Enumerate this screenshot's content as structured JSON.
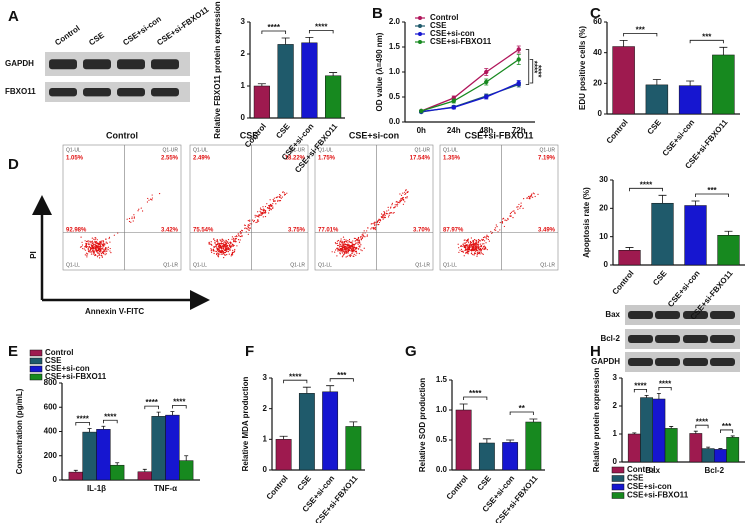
{
  "panel_labels": [
    "A",
    "B",
    "C",
    "D",
    "E",
    "F",
    "G",
    "H"
  ],
  "blot_A": {
    "lanes": [
      "Control",
      "CSE",
      "CSE+si-con",
      "CSE+si-FBXO11"
    ],
    "rows": [
      "GAPDH",
      "FBXO11"
    ]
  },
  "blot_H": {
    "rows": [
      "Bax",
      "Bcl-2",
      "GAPDH"
    ]
  },
  "flow": {
    "x_label": "Annexin V-FITC",
    "y_label": "PI",
    "quadrant_names": [
      "Q1-UL",
      "Q1-UR",
      "Q1-LL",
      "Q1-LR"
    ],
    "panels": [
      {
        "title": "Control",
        "UL": "1.05%",
        "UR": "2.55%",
        "LL": "92.98%",
        "LR": "3.42%"
      },
      {
        "title": "CSE",
        "UL": "2.49%",
        "UR": "18.22%",
        "LL": "75.54%",
        "LR": "3.75%"
      },
      {
        "title": "CSE+si-con",
        "UL": "1.75%",
        "UR": "17.54%",
        "LL": "77.01%",
        "LR": "3.70%"
      },
      {
        "title": "CSE+si-FBXO11",
        "UL": "1.35%",
        "UR": "7.19%",
        "LL": "87.97%",
        "LR": "3.49%"
      }
    ]
  },
  "chart_data": [
    {
      "type": "bar",
      "y_label": "Relative FBXO11 protein expression",
      "categories": [
        "Control",
        "CSE",
        "CSE+si-con",
        "CSE+si-FBXO11"
      ],
      "values": [
        1.0,
        2.3,
        2.35,
        1.32
      ],
      "errors": [
        0.07,
        0.2,
        0.17,
        0.1
      ],
      "colors": [
        "#9e1a4f",
        "#1f5a6b",
        "#1616d0",
        "#17891f"
      ],
      "ylim": [
        0,
        3
      ],
      "yticks": [
        0,
        1,
        2,
        3
      ],
      "annotations": [
        {
          "text": "****",
          "between": [
            0,
            1
          ]
        },
        {
          "text": "****",
          "between": [
            2,
            3
          ]
        }
      ]
    },
    {
      "type": "line",
      "y_label": "OD value (λ=490 nm)",
      "categories": [
        "0h",
        "24h",
        "48h",
        "72h"
      ],
      "series": [
        {
          "name": "Control",
          "color": "#b0155a",
          "values": [
            0.22,
            0.48,
            1.0,
            1.45
          ],
          "errors": [
            0.02,
            0.04,
            0.07,
            0.07
          ]
        },
        {
          "name": "CSE",
          "color": "#1f5a6b",
          "values": [
            0.2,
            0.3,
            0.52,
            0.75
          ],
          "errors": [
            0.02,
            0.03,
            0.04,
            0.05
          ]
        },
        {
          "name": "CSE+si-con",
          "color": "#1616d0",
          "values": [
            0.21,
            0.29,
            0.5,
            0.78
          ],
          "errors": [
            0.02,
            0.03,
            0.04,
            0.05
          ]
        },
        {
          "name": "CSE+si-FBXO11",
          "color": "#17891f",
          "values": [
            0.22,
            0.42,
            0.8,
            1.25
          ],
          "errors": [
            0.02,
            0.04,
            0.06,
            0.1
          ]
        }
      ],
      "ylim": [
        0,
        2
      ],
      "yticks": [
        {
          "value": 0,
          "label": "0.0"
        },
        {
          "value": 0.5,
          "label": "0.5"
        },
        {
          "value": 1,
          "label": "1.0"
        },
        {
          "value": 1.5,
          "label": "1.5"
        },
        {
          "value": 2,
          "label": "2.0"
        }
      ],
      "legend": "top-left",
      "annotations": [
        {
          "text": "****",
          "between": [
            0,
            1
          ]
        },
        {
          "text": "****",
          "between": [
            3,
            2
          ]
        }
      ]
    },
    {
      "type": "bar",
      "y_label": "EDU positive cells (%)",
      "categories": [
        "Control",
        "CSE",
        "CSE+si-con",
        "CSE+si-FBXO11"
      ],
      "values": [
        44,
        19,
        18.5,
        38.5
      ],
      "errors": [
        4,
        3.5,
        3,
        5
      ],
      "colors": [
        "#9e1a4f",
        "#1f5a6b",
        "#1616d0",
        "#17891f"
      ],
      "ylim": [
        0,
        60
      ],
      "yticks": [
        0,
        20,
        40,
        60
      ],
      "annotations": [
        {
          "text": "***",
          "between": [
            0,
            1
          ]
        },
        {
          "text": "***",
          "between": [
            2,
            3
          ]
        }
      ]
    },
    {
      "type": "bar",
      "y_label": "Apoptosis rate (%)",
      "categories": [
        "Control",
        "CSE",
        "CSE+si-con",
        "CSE+si-FBXO11"
      ],
      "values": [
        5.2,
        21.8,
        21,
        10.5
      ],
      "errors": [
        1,
        2.8,
        1.6,
        1.4
      ],
      "colors": [
        "#9e1a4f",
        "#1f5a6b",
        "#1616d0",
        "#17891f"
      ],
      "ylim": [
        0,
        30
      ],
      "yticks": [
        0,
        10,
        20,
        30
      ],
      "annotations": [
        {
          "text": "****",
          "between": [
            0,
            1
          ]
        },
        {
          "text": "***",
          "between": [
            2,
            3
          ]
        }
      ]
    },
    {
      "type": "bar",
      "y_label": "Concentration (pg/mL)",
      "categories": [
        "IL-1β",
        "TNF-α"
      ],
      "series": [
        {
          "name": "Control",
          "color": "#9e1a4f",
          "values": [
            65,
            68
          ],
          "errors": [
            15,
            20
          ]
        },
        {
          "name": "CSE",
          "color": "#1f5a6b",
          "values": [
            395,
            525
          ],
          "errors": [
            30,
            35
          ]
        },
        {
          "name": "CSE+si-con",
          "color": "#1616d0",
          "values": [
            418,
            535
          ],
          "errors": [
            25,
            30
          ]
        },
        {
          "name": "CSE+si-FBXO11",
          "color": "#17891f",
          "values": [
            122,
            160
          ],
          "errors": [
            20,
            40
          ]
        }
      ],
      "ylim": [
        0,
        800
      ],
      "yticks": [
        0,
        200,
        400,
        600,
        800
      ],
      "legend": "top-left",
      "annotations": [
        {
          "text": "****",
          "group": 0,
          "between": [
            0,
            1
          ]
        },
        {
          "text": "****",
          "group": 0,
          "between": [
            2,
            3
          ]
        },
        {
          "text": "****",
          "group": 1,
          "between": [
            0,
            1
          ]
        },
        {
          "text": "****",
          "group": 1,
          "between": [
            2,
            3
          ]
        }
      ]
    },
    {
      "type": "bar",
      "y_label": "Relative MDA production",
      "categories": [
        "Control",
        "CSE",
        "CSE+si-con",
        "CSE+si-FBXO11"
      ],
      "values": [
        1.0,
        2.5,
        2.55,
        1.42
      ],
      "errors": [
        0.1,
        0.2,
        0.2,
        0.15
      ],
      "colors": [
        "#9e1a4f",
        "#1f5a6b",
        "#1616d0",
        "#17891f"
      ],
      "ylim": [
        0,
        3
      ],
      "yticks": [
        0,
        1,
        2,
        3
      ],
      "annotations": [
        {
          "text": "****",
          "between": [
            0,
            1
          ]
        },
        {
          "text": "***",
          "between": [
            2,
            3
          ]
        }
      ]
    },
    {
      "type": "bar",
      "y_label": "Relative SOD production",
      "categories": [
        "Control",
        "CSE",
        "CSE+si-con",
        "CSE+si-FBXO11"
      ],
      "values": [
        1.0,
        0.45,
        0.46,
        0.8
      ],
      "errors": [
        0.1,
        0.07,
        0.04,
        0.05
      ],
      "colors": [
        "#9e1a4f",
        "#1f5a6b",
        "#1616d0",
        "#17891f"
      ],
      "ylim": [
        0,
        1.5
      ],
      "yticks": [
        {
          "value": 0,
          "label": "0.0"
        },
        {
          "value": 0.5,
          "label": "0.5"
        },
        {
          "value": 1,
          "label": "1.0"
        },
        {
          "value": 1.5,
          "label": "1.5"
        }
      ],
      "annotations": [
        {
          "text": "****",
          "between": [
            0,
            1
          ]
        },
        {
          "text": "**",
          "between": [
            2,
            3
          ]
        }
      ]
    },
    {
      "type": "bar",
      "y_label": "Relative protein expression",
      "categories": [
        "Bax",
        "Bcl-2"
      ],
      "series": [
        {
          "name": "Control",
          "color": "#9e1a4f",
          "values": [
            1.0,
            1.02
          ],
          "errors": [
            0.04,
            0.08
          ]
        },
        {
          "name": "CSE",
          "color": "#1f5a6b",
          "values": [
            2.3,
            0.48
          ],
          "errors": [
            0.08,
            0.05
          ]
        },
        {
          "name": "CSE+si-con",
          "color": "#1616d0",
          "values": [
            2.25,
            0.45
          ],
          "errors": [
            0.2,
            0.03
          ]
        },
        {
          "name": "CSE+si-FBXO11",
          "color": "#17891f",
          "values": [
            1.2,
            0.88
          ],
          "errors": [
            0.07,
            0.05
          ]
        }
      ],
      "ylim": [
        0,
        3
      ],
      "yticks": [
        0,
        1,
        2,
        3
      ],
      "legend": "bottom",
      "annotations": [
        {
          "text": "****",
          "group": 0,
          "between": [
            0,
            1
          ]
        },
        {
          "text": "****",
          "group": 0,
          "between": [
            2,
            3
          ]
        },
        {
          "text": "****",
          "group": 1,
          "between": [
            0,
            1
          ]
        },
        {
          "text": "***",
          "group": 1,
          "between": [
            2,
            3
          ]
        }
      ]
    }
  ]
}
